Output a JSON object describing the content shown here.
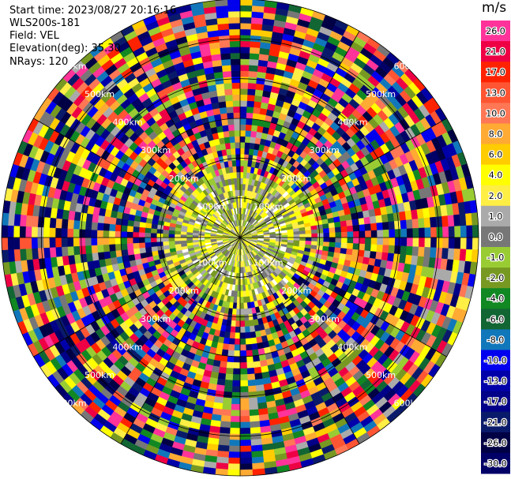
{
  "info": {
    "start_time": "Start time: 2023/08/27 20:16:16",
    "instrument": "WLS200s-181",
    "field": "Field: VEL",
    "elevation": "Elevation(deg): 35.30",
    "nrays": "NRays: 120"
  },
  "chart_data": {
    "type": "ppi-radar",
    "field": "VEL",
    "n_rays": 120,
    "ring_labels": [
      "100km",
      "200km",
      "300km",
      "400km",
      "500km",
      "600km"
    ],
    "ring_label_positions": [
      "inner",
      "2nd",
      "3rd",
      "4th",
      "5th",
      "outer"
    ],
    "colorbar": {
      "unit": "m/s",
      "levels": [
        {
          "label": "26.0",
          "color": "#ff3399"
        },
        {
          "label": "21.0",
          "color": "#ee0044"
        },
        {
          "label": "17.0",
          "color": "#ff2200"
        },
        {
          "label": "13.0",
          "color": "#ff5533"
        },
        {
          "label": "10.0",
          "color": "#ff7755"
        },
        {
          "label": "8.0",
          "color": "#ffaa33"
        },
        {
          "label": "6.0",
          "color": "#ffcc00"
        },
        {
          "label": "4.0",
          "color": "#ffff00"
        },
        {
          "label": "2.0",
          "color": "#ffee44"
        },
        {
          "label": "1.0",
          "color": "#aaaaaa"
        },
        {
          "label": "0.0",
          "color": "#777777"
        },
        {
          "label": "-1.0",
          "color": "#99cc33"
        },
        {
          "label": "-2.0",
          "color": "#779922"
        },
        {
          "label": "-4.0",
          "color": "#118822"
        },
        {
          "label": "-6.0",
          "color": "#116633"
        },
        {
          "label": "-8.0",
          "color": "#1177bb"
        },
        {
          "label": "-10.0",
          "color": "#0000ee"
        },
        {
          "label": "-13.0",
          "color": "#0000aa"
        },
        {
          "label": "-17.0",
          "color": "#000088"
        },
        {
          "label": "-21.0",
          "color": "#0a1a6b"
        },
        {
          "label": "-26.0",
          "color": "#000044"
        },
        {
          "label": "-30.0",
          "color": "#000066"
        }
      ]
    }
  }
}
